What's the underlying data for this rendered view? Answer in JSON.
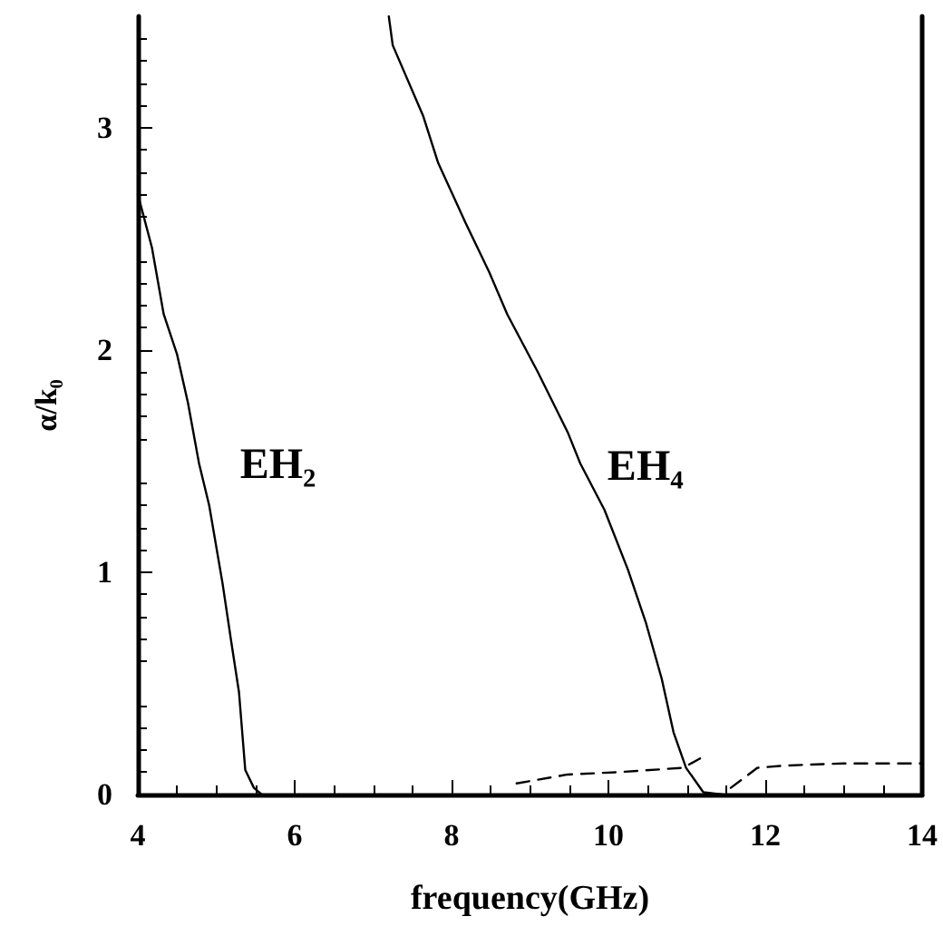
{
  "chart_data": {
    "type": "line",
    "xlabel": "frequency(GHz)",
    "ylabel": "α/k₀",
    "xlim": [
      4,
      14
    ],
    "xticks": [
      4,
      6,
      8,
      10,
      12,
      14
    ],
    "ylim": [
      0,
      3.5
    ],
    "yticks": [
      0,
      1,
      2,
      3
    ],
    "grid": false,
    "marker": "none",
    "series": [
      {
        "name": "EH₂",
        "color": "#000000",
        "line_style": "solid",
        "x": [
          4,
          4.18,
          4.33,
          4.5,
          4.64,
          4.78,
          4.91,
          5.08,
          5.19,
          5.29,
          5.37,
          5.48,
          5.58
        ],
        "values": [
          2.7,
          2.46,
          2.16,
          1.98,
          1.76,
          1.49,
          1.3,
          0.95,
          0.69,
          0.46,
          0.11,
          0.03,
          0
        ]
      },
      {
        "name": "EH₄",
        "color": "#000000",
        "line_style": "solid",
        "x": [
          7.2,
          7.25,
          7.64,
          7.83,
          8.18,
          8.48,
          8.71,
          9.1,
          9.48,
          9.64,
          9.95,
          10.25,
          10.48,
          10.68,
          10.83,
          10.99,
          11.21,
          11.45
        ],
        "values": [
          3.5,
          3.37,
          3.05,
          2.84,
          2.57,
          2.35,
          2.16,
          1.9,
          1.63,
          1.49,
          1.28,
          1.01,
          0.77,
          0.52,
          0.28,
          0.12,
          0.01,
          0
        ]
      },
      {
        "color": "#000000",
        "line_style": "dashed",
        "x": [
          8.83,
          9.48,
          10.1,
          10.95,
          11.21,
          11.4,
          11.56,
          11.9,
          12.25,
          13,
          14
        ],
        "values": [
          0.05,
          0.09,
          0.1,
          0.12,
          0.17,
          null,
          0.03,
          0.12,
          0.13,
          0.14,
          0.14
        ]
      }
    ]
  }
}
